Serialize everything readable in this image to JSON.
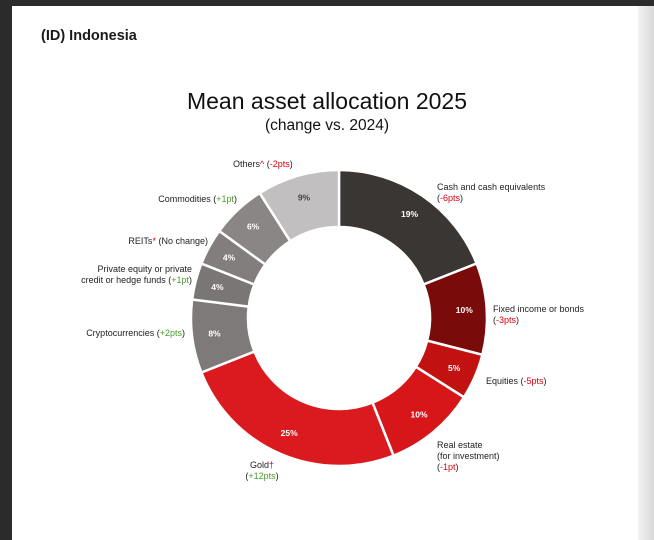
{
  "header": {
    "region": "(ID) Indonesia"
  },
  "chart_data": {
    "type": "pie",
    "title": "Mean asset allocation 2025",
    "subtitle": "(change vs. 2024)",
    "slices": [
      {
        "key": "cash",
        "label": "Cash and cash equivalents",
        "label_sym": "",
        "change": "-6pts",
        "value": 19,
        "value_label": "19%",
        "color": "#3a3634"
      },
      {
        "key": "fixed",
        "label": "Fixed income or bonds",
        "label_sym": "",
        "change": "-3pts",
        "value": 10,
        "value_label": "10%",
        "color": "#7a0b0b"
      },
      {
        "key": "equities",
        "label": "Equities",
        "label_sym": "",
        "change": "-5pts",
        "value": 5,
        "value_label": "5%",
        "color": "#c11111"
      },
      {
        "key": "realestate",
        "label": "Real estate (for investment)",
        "label_sym": "",
        "change": "-1pt",
        "value": 10,
        "value_label": "10%",
        "color": "#d7161a"
      },
      {
        "key": "gold",
        "label": "Gold",
        "label_sym": "†",
        "change": "+12pts",
        "value": 25,
        "value_label": "25%",
        "color": "#db1a1f"
      },
      {
        "key": "crypto",
        "label": "Cryptocurrencies",
        "label_sym": "",
        "change": "+2pts",
        "value": 8,
        "value_label": "8%",
        "color": "#7e7a79"
      },
      {
        "key": "private",
        "label": "Private equity or private credit or hedge funds",
        "label_sym": "",
        "change": "+1pt",
        "value": 4,
        "value_label": "4%",
        "color": "#7a7675"
      },
      {
        "key": "reits",
        "label": "REITs",
        "label_sym": "*",
        "change": "No change",
        "value": 4,
        "value_label": "4%",
        "color": "#827e7d"
      },
      {
        "key": "commodities",
        "label": "Commodities",
        "label_sym": "",
        "change": "+1pt",
        "value": 6,
        "value_label": "6%",
        "color": "#8a8685"
      },
      {
        "key": "others",
        "label": "Others",
        "label_sym": "^",
        "change": "-2pts",
        "value": 9,
        "value_label": "9%",
        "color": "#c1bfbf"
      }
    ]
  },
  "labels": {
    "cash_l1": "Cash and cash equivalents",
    "cash_chg": "-6pts",
    "fixed_l1": "Fixed income or bonds",
    "fixed_chg": "-3pts",
    "equities_l1": "Equities",
    "equities_chg": "-5pts",
    "realestate_l1": "Real estate",
    "realestate_l2": "(for investment)",
    "realestate_chg": "-1pt",
    "gold_l1": "Gold",
    "gold_sym": "†",
    "gold_chg": "+12pts",
    "crypto_l1": "Cryptocurrencies",
    "crypto_chg": "+2pts",
    "private_l1": "Private equity or private",
    "private_l2": "credit or hedge funds",
    "private_chg": "+1pt",
    "reits_l1": "REITs",
    "reits_sym": "*",
    "reits_chg": "No change",
    "commodities_l1": "Commodities",
    "commodities_chg": "+1pt",
    "others_l1": "Others",
    "others_sym": "^",
    "others_chg": "-2pts"
  }
}
